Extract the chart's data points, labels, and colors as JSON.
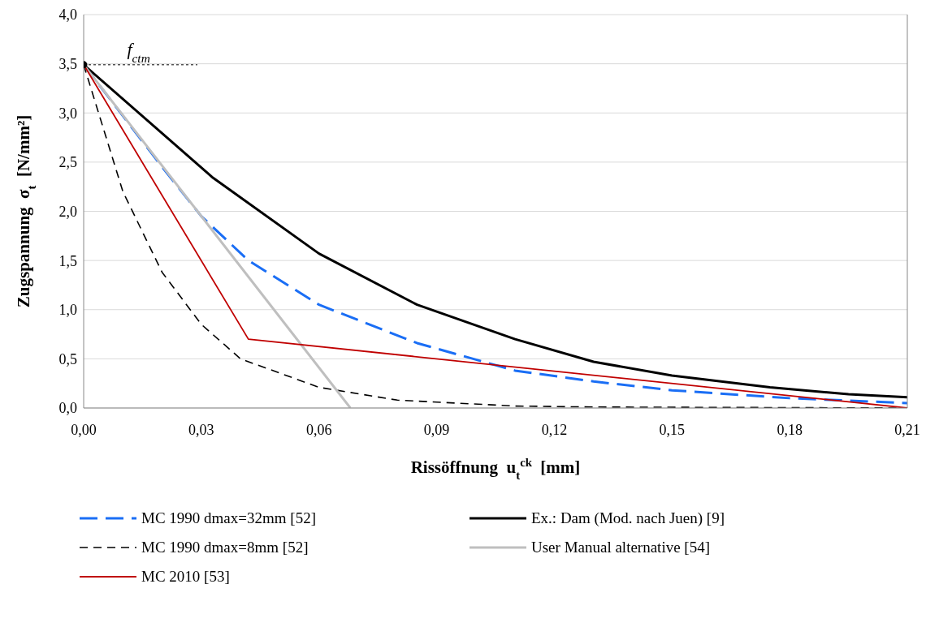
{
  "chart_data": {
    "type": "line",
    "xlabel": "Rissöffnung  u$_{t}$$^{ck}$  [mm]",
    "ylabel": "Zugspannung  σ$_{t}$  [N/mm²]",
    "xlim": [
      0,
      0.21
    ],
    "xticks": [
      {
        "value": 0,
        "label": "0,00"
      },
      {
        "value": 0.03,
        "label": "0,03"
      },
      {
        "value": 0.06,
        "label": "0,06"
      },
      {
        "value": 0.09,
        "label": "0,09"
      },
      {
        "value": 0.12,
        "label": "0,12"
      },
      {
        "value": 0.15,
        "label": "0,15"
      },
      {
        "value": 0.18,
        "label": "0,18"
      },
      {
        "value": 0.21,
        "label": "0,21"
      }
    ],
    "ylim": [
      0,
      4
    ],
    "yticks": [
      {
        "value": 0,
        "label": "0,0"
      },
      {
        "value": 0.5,
        "label": "0,5"
      },
      {
        "value": 1,
        "label": "1,0"
      },
      {
        "value": 1.5,
        "label": "1,5"
      },
      {
        "value": 2,
        "label": "2,0"
      },
      {
        "value": 2.5,
        "label": "2,5"
      },
      {
        "value": 3,
        "label": "3,0"
      },
      {
        "value": 3.5,
        "label": "3,5"
      },
      {
        "value": 4,
        "label": "4,0"
      }
    ],
    "grid": "y",
    "legend": "bottom",
    "marker": "none",
    "annotations": [
      {
        "text": "f$_{ctm}$",
        "x": 0.014,
        "y": 3.49
      }
    ],
    "series": [
      {
        "name": "MC 1990 dmax=32mm [52]",
        "color": "#1a6ef5",
        "line_style": "dashed",
        "x": [
          0,
          0.02,
          0.03,
          0.042,
          0.06,
          0.085,
          0.11,
          0.13,
          0.15,
          0.18,
          0.21
        ],
        "values": [
          3.49,
          2.45,
          1.95,
          1.5,
          1.05,
          0.66,
          0.38,
          0.27,
          0.18,
          0.1,
          0.05
        ]
      },
      {
        "name": "Ex.: Dam (Mod. nach Juen) [9]",
        "color": "#000000",
        "line_style": "solid",
        "x": [
          0,
          0.033,
          0.06,
          0.085,
          0.11,
          0.13,
          0.15,
          0.175,
          0.195,
          0.21
        ],
        "values": [
          3.49,
          2.34,
          1.57,
          1.05,
          0.7,
          0.47,
          0.33,
          0.21,
          0.14,
          0.11
        ]
      },
      {
        "name": "MC 1990 dmax=8mm [52]",
        "color": "#000000",
        "line_style": "dashed",
        "x": [
          0,
          0.01,
          0.02,
          0.03,
          0.04,
          0.06,
          0.08,
          0.11,
          0.13,
          0.21
        ],
        "values": [
          3.49,
          2.2,
          1.38,
          0.85,
          0.5,
          0.21,
          0.08,
          0.02,
          0.01,
          0
        ]
      },
      {
        "name": "User Manual alternative [54]",
        "color": "#bfbfbf",
        "line_style": "solid",
        "x": [
          0,
          0.068
        ],
        "values": [
          3.49,
          0
        ]
      },
      {
        "name": "MC 2010 [53]",
        "color": "#c00000",
        "line_style": "solid",
        "x": [
          0,
          0.042,
          0.21
        ],
        "values": [
          3.49,
          0.7,
          0
        ]
      },
      {
        "color": "#000000",
        "line_style": "dotted",
        "x": [
          0,
          0.029
        ],
        "values": [
          3.49,
          3.49
        ]
      },
      {
        "type": "scatter",
        "marker": "circle",
        "color": "#000000",
        "x": [
          0
        ],
        "values": [
          3.49
        ]
      }
    ]
  }
}
